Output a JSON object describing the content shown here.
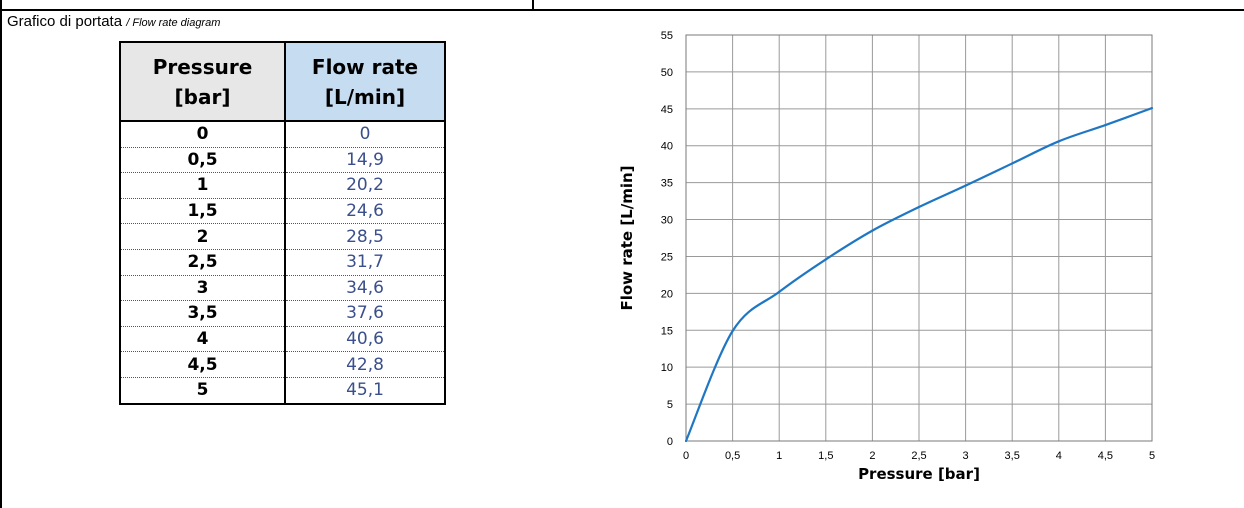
{
  "title": {
    "main": "Grafico di portata",
    "sub": "/ Flow rate diagram"
  },
  "table": {
    "headers": {
      "pressure_line1": "Pressure",
      "pressure_line2": "[bar]",
      "flow_line1": "Flow rate",
      "flow_line2": "[L/min]"
    },
    "rows": [
      {
        "pressure": "0",
        "flow": "0"
      },
      {
        "pressure": "0,5",
        "flow": "14,9"
      },
      {
        "pressure": "1",
        "flow": "20,2"
      },
      {
        "pressure": "1,5",
        "flow": "24,6"
      },
      {
        "pressure": "2",
        "flow": "28,5"
      },
      {
        "pressure": "2,5",
        "flow": "31,7"
      },
      {
        "pressure": "3",
        "flow": "34,6"
      },
      {
        "pressure": "3,5",
        "flow": "37,6"
      },
      {
        "pressure": "4",
        "flow": "40,6"
      },
      {
        "pressure": "4,5",
        "flow": "42,8"
      },
      {
        "pressure": "5",
        "flow": "45,1"
      }
    ],
    "colors": {
      "pressure_header_bg": "#e7e7e7",
      "flow_header_bg": "#c6dcf1",
      "flow_value_text": "#3a4f8c"
    }
  },
  "chart_data": {
    "type": "line",
    "title": "",
    "xlabel": "Pressure [bar]",
    "ylabel": "Flow rate [L/min]",
    "xlim": [
      0,
      5
    ],
    "ylim": [
      0,
      55
    ],
    "xticks": [
      0,
      0.5,
      1,
      1.5,
      2,
      2.5,
      3,
      3.5,
      4,
      4.5,
      5
    ],
    "xtick_labels": [
      "0",
      "0,5",
      "1",
      "1,5",
      "2",
      "2,5",
      "3",
      "3,5",
      "4",
      "4,5",
      "5"
    ],
    "yticks": [
      0,
      5,
      10,
      15,
      20,
      25,
      30,
      35,
      40,
      45,
      50,
      55
    ],
    "ytick_labels": [
      "0",
      "5",
      "10",
      "15",
      "20",
      "25",
      "30",
      "35",
      "40",
      "45",
      "50",
      "55"
    ],
    "grid": true,
    "series": [
      {
        "x": [
          0,
          0.5,
          1,
          1.5,
          2,
          2.5,
          3,
          3.5,
          4,
          4.5,
          5
        ],
        "y": [
          0,
          14.9,
          20.2,
          24.6,
          28.5,
          31.7,
          34.6,
          37.6,
          40.6,
          42.8,
          45.1
        ],
        "color": "#1f77c4"
      }
    ]
  }
}
